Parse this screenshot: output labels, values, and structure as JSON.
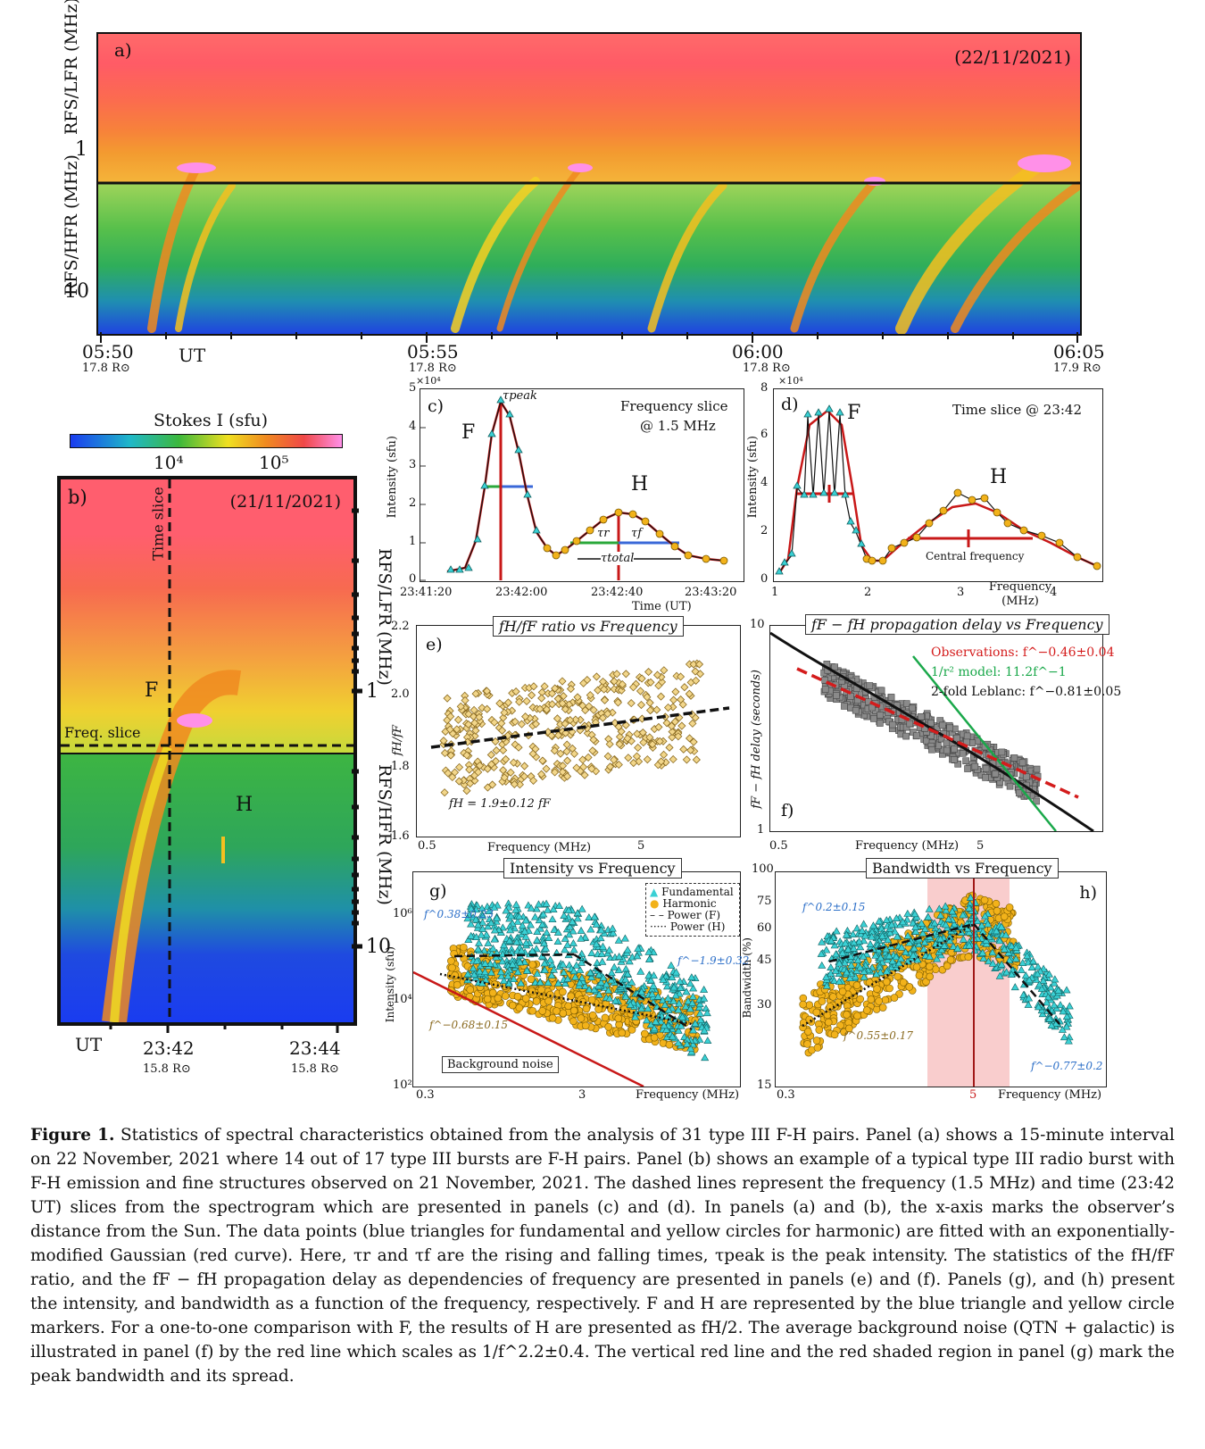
{
  "panel_a": {
    "label": "a)",
    "date": "(22/11/2021)",
    "ylabel_top": "RFS/LFR (MHz)",
    "ylabel_bottom": "RFS/HFR (MHz)",
    "ytick_1": "1",
    "ytick_10": "10",
    "xticks": [
      {
        "time": "05:50",
        "dist": "17.8 R⊙"
      },
      {
        "time": "05:55",
        "dist": "17.8 R⊙"
      },
      {
        "time": "06:00",
        "dist": "17.8 R⊙"
      },
      {
        "time": "06:05",
        "dist": "17.9 R⊙"
      }
    ],
    "xunit": "UT"
  },
  "colorbar": {
    "title": "Stokes I (sfu)",
    "tick1": "10⁴",
    "tick2": "10⁵",
    "colors": [
      "#1a3cf0",
      "#1fb8c8",
      "#3cb83c",
      "#f0e020",
      "#f08a20",
      "#f04848",
      "#ff90e8"
    ]
  },
  "panel_b": {
    "label": "b)",
    "date": "(21/11/2021)",
    "time_slice": "Time slice",
    "freq_slice": "Freq. slice",
    "F": "F",
    "H": "H",
    "ylabel_top": "RFS/LFR (MHz)",
    "ylabel_bottom": "RFS/HFR (MHz)",
    "ytick_1": "1",
    "ytick_10": "10",
    "xunit": "UT",
    "xticks": [
      {
        "time": "23:42",
        "dist": "15.8 R⊙"
      },
      {
        "time": "23:44",
        "dist": "15.8 R⊙"
      }
    ]
  },
  "panel_c": {
    "label": "c)",
    "title": "Frequency slice",
    "subtitle": "@ 1.5 MHz",
    "ylabel": "Intensity (sfu)",
    "yexp": "×10⁴",
    "yticks": [
      "0",
      "1",
      "2",
      "3",
      "4",
      "5"
    ],
    "xticks": [
      "23:41:20",
      "23:42:00",
      "23:42:40",
      "23:43:20"
    ],
    "xlabel": "Time (UT)",
    "F": "F",
    "H": "H",
    "tau_peak": "τpeak",
    "tau_r": "τr",
    "tau_f": "τf",
    "tau_total": "τtotal"
  },
  "panel_d": {
    "label": "d)",
    "title": "Time slice @ 23:42",
    "ylabel": "Intensity (sfu)",
    "yexp": "×10⁴",
    "yticks": [
      "0",
      "2",
      "4",
      "6",
      "8"
    ],
    "xticks": [
      "1",
      "2",
      "3",
      "4"
    ],
    "xlabel": "Frequency (MHz)",
    "F": "F",
    "H": "H",
    "central": "Central frequency"
  },
  "panel_e": {
    "label": "e)",
    "title": "fH/fF ratio vs Frequency",
    "ylabel": "fH/fF",
    "yticks": [
      "1.6",
      "1.8",
      "2.0",
      "2.2"
    ],
    "xticks": [
      "0.5",
      "5"
    ],
    "xlabel": "Frequency (MHz)",
    "fit": "fH = 1.9±0.12 fF"
  },
  "panel_f": {
    "label": "f)",
    "title": "fF − fH propagation delay vs Frequency",
    "ylabel": "fF − fH delay (seconds)",
    "yticks": [
      "1",
      "10"
    ],
    "xticks": [
      "0.5",
      "5"
    ],
    "xlabel": "Frequency (MHz)",
    "legend_obs": "Observations: f^−0.46±0.04",
    "legend_model": "1/r² model: 11.2f^−1",
    "legend_leblanc": "2-fold Leblanc: f^−0.81±0.05",
    "obs_color": "#d41c1c",
    "model_color": "#1aa84a"
  },
  "panel_g": {
    "label": "g)",
    "title": "Intensity vs Frequency",
    "ylabel": "Intensity (sfu)",
    "yticks": [
      "10²",
      "10⁴",
      "10⁶"
    ],
    "xticks": [
      "0.3",
      "3"
    ],
    "xlabel": "Frequency (MHz)",
    "legend": [
      "Fundamental",
      "Harmonic",
      "Power (F)",
      "Power (H)"
    ],
    "fF_low": "f^0.38±0.23",
    "fF_high": "f^−1.9±0.32",
    "fH": "f^−0.68±0.15",
    "bg": "Background noise"
  },
  "panel_h": {
    "label": "h)",
    "title": "Bandwidth vs Frequency",
    "ylabel": "Bandwidth (%)",
    "yticks": [
      "15",
      "30",
      "45",
      "60",
      "75",
      "100"
    ],
    "xticks": [
      "0.3",
      "5"
    ],
    "xlabel": "Frequency (MHz)",
    "fF_low": "f^0.2±0.15",
    "fH_low": "f^0.55±0.17",
    "fF_high": "f^−0.77±0.2"
  },
  "caption": {
    "figlabel": "Figure 1.",
    "text": "Statistics of spectral characteristics obtained from the analysis of 31 type III F-H pairs. Panel (a) shows a 15-minute interval on 22 November, 2021 where 14 out of 17 type III bursts are F-H pairs. Panel (b) shows an example of a typical type III radio burst with F-H emission and fine structures observed on 21 November, 2021. The dashed lines represent the frequency (1.5 MHz) and time (23:42 UT) slices from the spectrogram which are presented in panels (c) and (d). In panels (a) and (b), the x-axis marks the observer’s distance from the Sun. The data points (blue triangles for fundamental and yellow circles for harmonic) are fitted with an exponentially-modified Gaussian (red curve). Here, τr and τf are the rising and falling times, τpeak is the peak intensity. The statistics of the fH/fF ratio, and the fF − fH propagation delay as dependencies of frequency are presented in panels (e) and (f). Panels (g), and (h) present the intensity, and bandwidth as a function of the frequency, respectively. F and H are represented by the blue triangle and yellow circle markers. For a one-to-one comparison with F, the results of H are presented as fH/2. The average background noise (QTN + galactic) is illustrated in panel (f) by the red line which scales as 1/f^2.2±0.4. The vertical red line and the red shaded region in panel (g) mark the peak bandwidth and its spread."
  }
}
